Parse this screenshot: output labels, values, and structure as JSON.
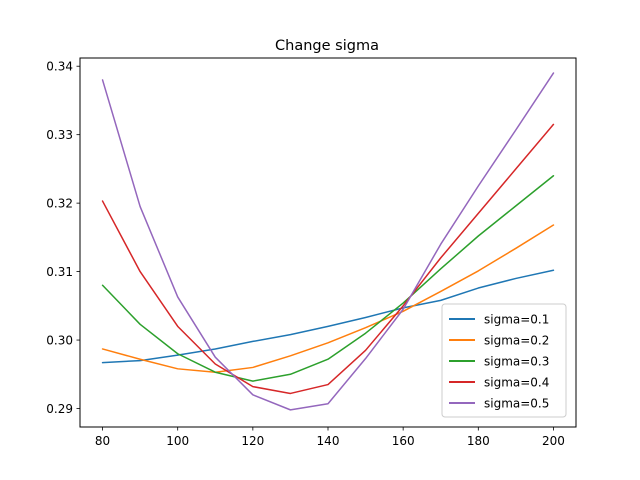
{
  "chart_data": {
    "type": "line",
    "title": "Change sigma",
    "xlabel": "",
    "ylabel": "",
    "xlim": [
      74,
      206
    ],
    "ylim": [
      0.2873,
      0.3412
    ],
    "x_ticks": [
      80,
      100,
      120,
      140,
      160,
      180,
      200
    ],
    "x_tick_labels": [
      "80",
      "100",
      "120",
      "140",
      "160",
      "180",
      "200"
    ],
    "y_ticks": [
      0.29,
      0.3,
      0.31,
      0.32,
      0.33,
      0.34
    ],
    "y_tick_labels": [
      "0.29",
      "0.30",
      "0.31",
      "0.32",
      "0.33",
      "0.34"
    ],
    "grid": false,
    "legend_position": "lower-right",
    "series": [
      {
        "name": "sigma=0.1",
        "color": "#1f77b4",
        "x": [
          80,
          90,
          100,
          110,
          120,
          130,
          140,
          150,
          160,
          170,
          180,
          190,
          200
        ],
        "y": [
          0.2967,
          0.297,
          0.2978,
          0.2987,
          0.2998,
          0.3008,
          0.302,
          0.3033,
          0.3047,
          0.3058,
          0.3076,
          0.309,
          0.3102
        ]
      },
      {
        "name": "sigma=0.2",
        "color": "#ff7f0e",
        "x": [
          80,
          90,
          100,
          110,
          120,
          130,
          140,
          150,
          160,
          170,
          180,
          190,
          200
        ],
        "y": [
          0.2987,
          0.2972,
          0.2958,
          0.2953,
          0.296,
          0.2977,
          0.2996,
          0.3018,
          0.3042,
          0.3071,
          0.3101,
          0.3134,
          0.3168
        ]
      },
      {
        "name": "sigma=0.3",
        "color": "#2ca02c",
        "x": [
          80,
          90,
          100,
          110,
          120,
          130,
          140,
          150,
          160,
          170,
          180,
          190,
          200
        ],
        "y": [
          0.308,
          0.3023,
          0.298,
          0.2953,
          0.294,
          0.295,
          0.2972,
          0.301,
          0.3054,
          0.3104,
          0.3152,
          0.3196,
          0.324
        ]
      },
      {
        "name": "sigma=0.4",
        "color": "#d62728",
        "x": [
          80,
          90,
          100,
          110,
          120,
          130,
          140,
          150,
          160,
          170,
          180,
          190,
          200
        ],
        "y": [
          0.3203,
          0.31,
          0.302,
          0.2965,
          0.2932,
          0.2922,
          0.2935,
          0.2985,
          0.305,
          0.312,
          0.3185,
          0.325,
          0.3315
        ]
      },
      {
        "name": "sigma=0.5",
        "color": "#9467bd",
        "x": [
          80,
          90,
          100,
          110,
          120,
          130,
          140,
          150,
          160,
          170,
          180,
          190,
          200
        ],
        "y": [
          0.338,
          0.3195,
          0.3063,
          0.2975,
          0.292,
          0.2898,
          0.2907,
          0.2973,
          0.3045,
          0.314,
          0.3225,
          0.3307,
          0.339
        ]
      }
    ]
  }
}
